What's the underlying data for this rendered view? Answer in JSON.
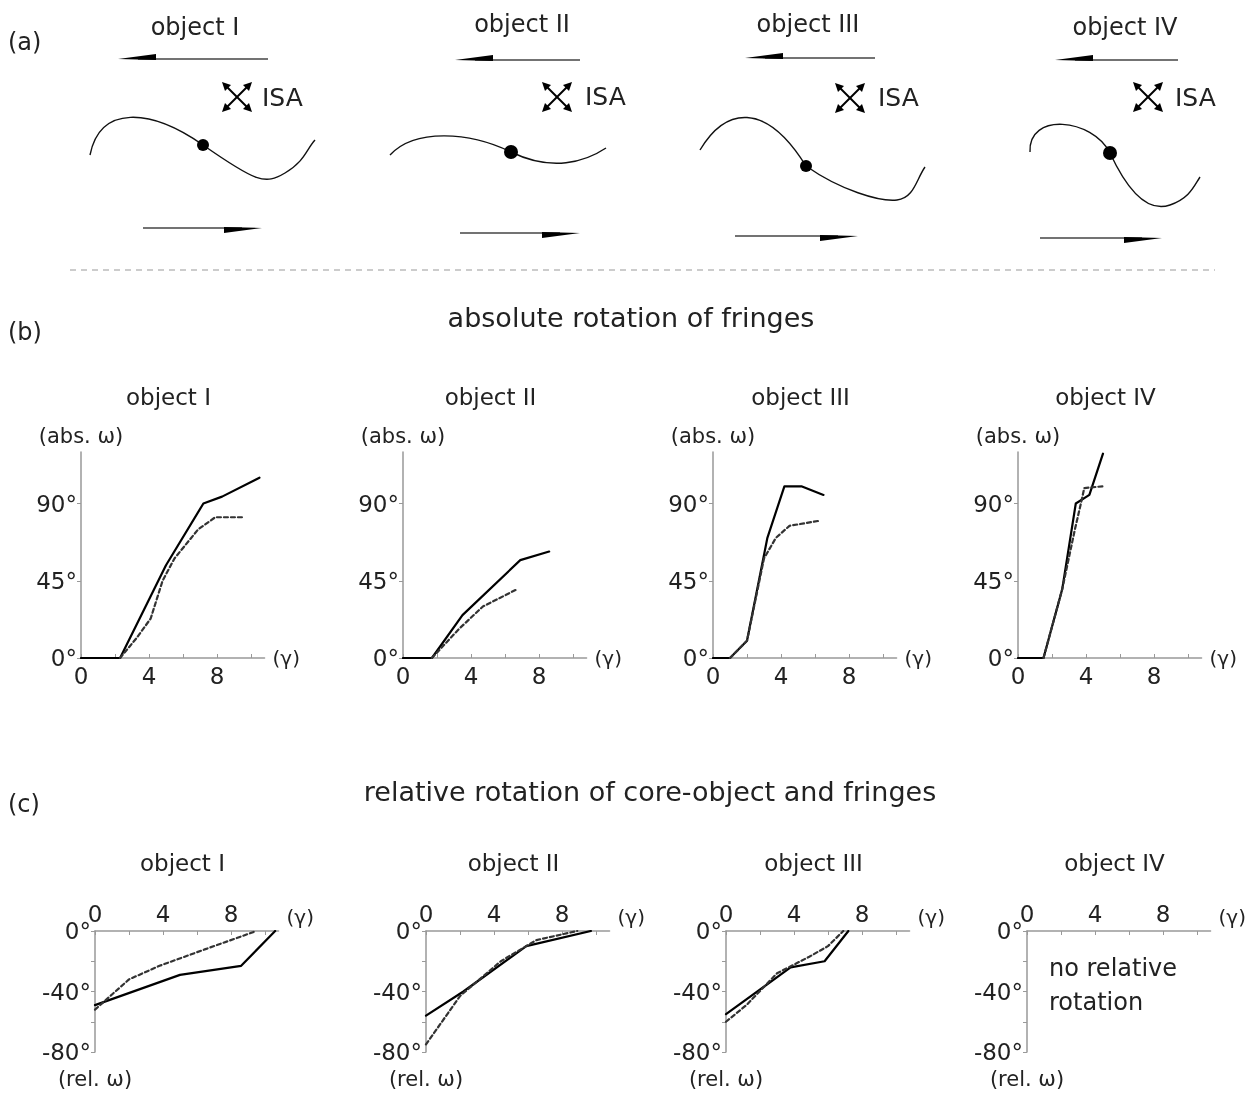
{
  "chart_data": [
    {
      "type": "other",
      "annotations": [
        "(a)",
        "object I",
        "ISA",
        "object II",
        "ISA",
        "object III",
        "ISA",
        "object IV",
        "ISA"
      ]
    },
    {
      "type": "line",
      "title": "object I",
      "xlabel": "(γ)",
      "ylabel": "(abs. ω)",
      "annotations": [
        "(b)",
        "absolute rotation of fringes"
      ],
      "xlim": [
        0,
        10.8
      ],
      "ylim": [
        0,
        120
      ],
      "xticks": [
        0,
        {
          "value": 2,
          "label": null
        },
        4,
        {
          "value": 6,
          "label": null
        },
        8,
        {
          "value": 10,
          "label": null
        }
      ],
      "yticks": [
        {
          "value": 0,
          "label": "0°"
        },
        {
          "value": 45,
          "label": "45°"
        },
        {
          "value": 90,
          "label": "90°"
        }
      ],
      "marker": "none",
      "grid": false,
      "series": [
        {
          "color": "#000000",
          "line_style": "solid",
          "x": [
            0,
            2.3,
            5,
            7.2,
            8.3,
            10.5
          ],
          "values": [
            0,
            0,
            54,
            90,
            94,
            105
          ]
        },
        {
          "color": "#333333",
          "line_style": "dashed",
          "x": [
            2.3,
            3.3,
            4.1,
            4.8,
            5.5,
            6.9,
            7.9,
            9.6
          ],
          "values": [
            0,
            12,
            23,
            45,
            58,
            75,
            82,
            82
          ]
        }
      ]
    },
    {
      "type": "line",
      "title": "object II",
      "xlabel": "(γ)",
      "ylabel": "(abs. ω)",
      "xlim": [
        0,
        10.8
      ],
      "ylim": [
        0,
        120
      ],
      "xticks": [
        0,
        {
          "value": 2,
          "label": null
        },
        4,
        {
          "value": 6,
          "label": null
        },
        8,
        {
          "value": 10,
          "label": null
        }
      ],
      "yticks": [
        {
          "value": 0,
          "label": "0°"
        },
        {
          "value": 45,
          "label": "45°"
        },
        {
          "value": 90,
          "label": "90°"
        }
      ],
      "marker": "none",
      "grid": false,
      "series": [
        {
          "color": "#000000",
          "line_style": "solid",
          "x": [
            0,
            1.7,
            3.5,
            6.9,
            8.6
          ],
          "values": [
            0,
            0,
            25,
            57,
            62
          ]
        },
        {
          "color": "#333333",
          "line_style": "dashed",
          "x": [
            1.7,
            3.3,
            4.7,
            6.7
          ],
          "values": [
            0,
            17,
            30,
            40
          ]
        }
      ]
    },
    {
      "type": "line",
      "title": "object III",
      "xlabel": "(γ)",
      "ylabel": "(abs. ω)",
      "xlim": [
        0,
        10.8
      ],
      "ylim": [
        0,
        120
      ],
      "xticks": [
        0,
        {
          "value": 2,
          "label": null
        },
        4,
        {
          "value": 6,
          "label": null
        },
        8,
        {
          "value": 10,
          "label": null
        }
      ],
      "yticks": [
        {
          "value": 0,
          "label": "0°"
        },
        {
          "value": 45,
          "label": "45°"
        },
        {
          "value": 90,
          "label": "90°"
        }
      ],
      "marker": "none",
      "grid": false,
      "series": [
        {
          "color": "#000000",
          "line_style": "solid",
          "x": [
            0,
            1,
            2,
            3.2,
            4.2,
            5.2,
            6.5
          ],
          "values": [
            0,
            0,
            10,
            70,
            100,
            100,
            95
          ]
        },
        {
          "color": "#333333",
          "line_style": "dashed",
          "x": [
            1,
            2,
            3,
            3.7,
            4.5,
            6.3
          ],
          "values": [
            0,
            10,
            58,
            70,
            77,
            80
          ]
        }
      ]
    },
    {
      "type": "line",
      "title": "object IV",
      "xlabel": "(γ)",
      "ylabel": "(abs. ω)",
      "xlim": [
        0,
        10.8
      ],
      "ylim": [
        0,
        120
      ],
      "xticks": [
        0,
        {
          "value": 2,
          "label": null
        },
        4,
        {
          "value": 6,
          "label": null
        },
        8,
        {
          "value": 10,
          "label": null
        }
      ],
      "yticks": [
        {
          "value": 0,
          "label": "0°"
        },
        {
          "value": 45,
          "label": "45°"
        },
        {
          "value": 90,
          "label": "90°"
        }
      ],
      "marker": "none",
      "grid": false,
      "series": [
        {
          "color": "#000000",
          "line_style": "solid",
          "x": [
            0,
            1.5,
            2.6,
            3.4,
            4.2,
            5
          ],
          "values": [
            0,
            0,
            40,
            90,
            95,
            119
          ]
        },
        {
          "color": "#333333",
          "line_style": "dashed",
          "x": [
            1.5,
            2.6,
            3.35,
            3.7,
            3.9,
            5
          ],
          "values": [
            0,
            40,
            75,
            90,
            99,
            100
          ]
        }
      ]
    },
    {
      "type": "line",
      "title": "object I",
      "xlabel": "(γ)",
      "ylabel": "(rel. ω)",
      "annotations": [
        "(c)",
        "relative rotation of core-object and fringes"
      ],
      "xlim": [
        0,
        10.8
      ],
      "ylim": [
        -80,
        0
      ],
      "xticks": [
        0,
        {
          "value": 2,
          "label": null
        },
        4,
        {
          "value": 6,
          "label": null
        },
        8,
        {
          "value": 10,
          "label": null
        }
      ],
      "yticks": [
        {
          "value": -80,
          "label": "-80°"
        },
        {
          "value": -60,
          "label": null
        },
        {
          "value": -40,
          "label": "-40°"
        },
        {
          "value": -20,
          "label": null
        },
        {
          "value": 0,
          "label": "0°"
        }
      ],
      "marker": "none",
      "grid": false,
      "series": [
        {
          "color": "#000000",
          "line_style": "solid",
          "x": [
            0,
            5,
            8.6,
            10.6
          ],
          "values": [
            -49,
            -29,
            -23,
            0
          ]
        },
        {
          "color": "#333333",
          "line_style": "dashed",
          "x": [
            0,
            1,
            2,
            3.8,
            6.5,
            9.5
          ],
          "values": [
            -52,
            -42,
            -32,
            -23,
            -12,
            0
          ]
        }
      ]
    },
    {
      "type": "line",
      "title": "object II",
      "xlabel": "(γ)",
      "ylabel": "(rel. ω)",
      "xlim": [
        0,
        10.8
      ],
      "ylim": [
        -80,
        0
      ],
      "xticks": [
        0,
        {
          "value": 2,
          "label": null
        },
        4,
        {
          "value": 6,
          "label": null
        },
        8,
        {
          "value": 10,
          "label": null
        }
      ],
      "yticks": [
        {
          "value": -80,
          "label": "-80°"
        },
        {
          "value": -60,
          "label": null
        },
        {
          "value": -40,
          "label": "-40°"
        },
        {
          "value": -20,
          "label": null
        },
        {
          "value": 0,
          "label": "0°"
        }
      ],
      "marker": "none",
      "grid": false,
      "series": [
        {
          "color": "#000000",
          "line_style": "solid",
          "x": [
            0,
            2.2,
            5.9,
            9.7
          ],
          "values": [
            -56,
            -40,
            -10,
            0
          ]
        },
        {
          "color": "#333333",
          "line_style": "dashed",
          "x": [
            0,
            2,
            4.4,
            6.5,
            8.9
          ],
          "values": [
            -75,
            -43,
            -20,
            -6,
            0
          ]
        }
      ]
    },
    {
      "type": "line",
      "title": "object III",
      "xlabel": "(γ)",
      "ylabel": "(rel. ω)",
      "xlim": [
        0,
        10.8
      ],
      "ylim": [
        -80,
        0
      ],
      "xticks": [
        0,
        {
          "value": 2,
          "label": null
        },
        4,
        {
          "value": 6,
          "label": null
        },
        8,
        {
          "value": 10,
          "label": null
        }
      ],
      "yticks": [
        {
          "value": -80,
          "label": "-80°"
        },
        {
          "value": -60,
          "label": null
        },
        {
          "value": -40,
          "label": "-40°"
        },
        {
          "value": -20,
          "label": null
        },
        {
          "value": 0,
          "label": "0°"
        }
      ],
      "marker": "none",
      "grid": false,
      "series": [
        {
          "color": "#000000",
          "line_style": "solid",
          "x": [
            0,
            3.8,
            5.8,
            7.2
          ],
          "values": [
            -55,
            -24,
            -20,
            0
          ]
        },
        {
          "color": "#333333",
          "line_style": "dashed",
          "x": [
            0,
            1.2,
            3,
            4.9,
            6,
            6.9
          ],
          "values": [
            -60,
            -49,
            -28,
            -17,
            -10,
            0
          ]
        }
      ]
    },
    {
      "type": "line",
      "title": "object IV",
      "xlabel": "(γ)",
      "ylabel": "(rel. ω)",
      "annotations": [
        "no relative rotation"
      ],
      "xlim": [
        0,
        10.8
      ],
      "ylim": [
        -80,
        0
      ],
      "xticks": [
        0,
        {
          "value": 2,
          "label": null
        },
        4,
        {
          "value": 6,
          "label": null
        },
        8,
        {
          "value": 10,
          "label": null
        }
      ],
      "yticks": [
        {
          "value": -80,
          "label": "-80°"
        },
        {
          "value": -60,
          "label": null
        },
        {
          "value": -40,
          "label": "-40°"
        },
        {
          "value": -20,
          "label": null
        },
        {
          "value": 0,
          "label": "0°"
        }
      ],
      "grid": false
    }
  ]
}
